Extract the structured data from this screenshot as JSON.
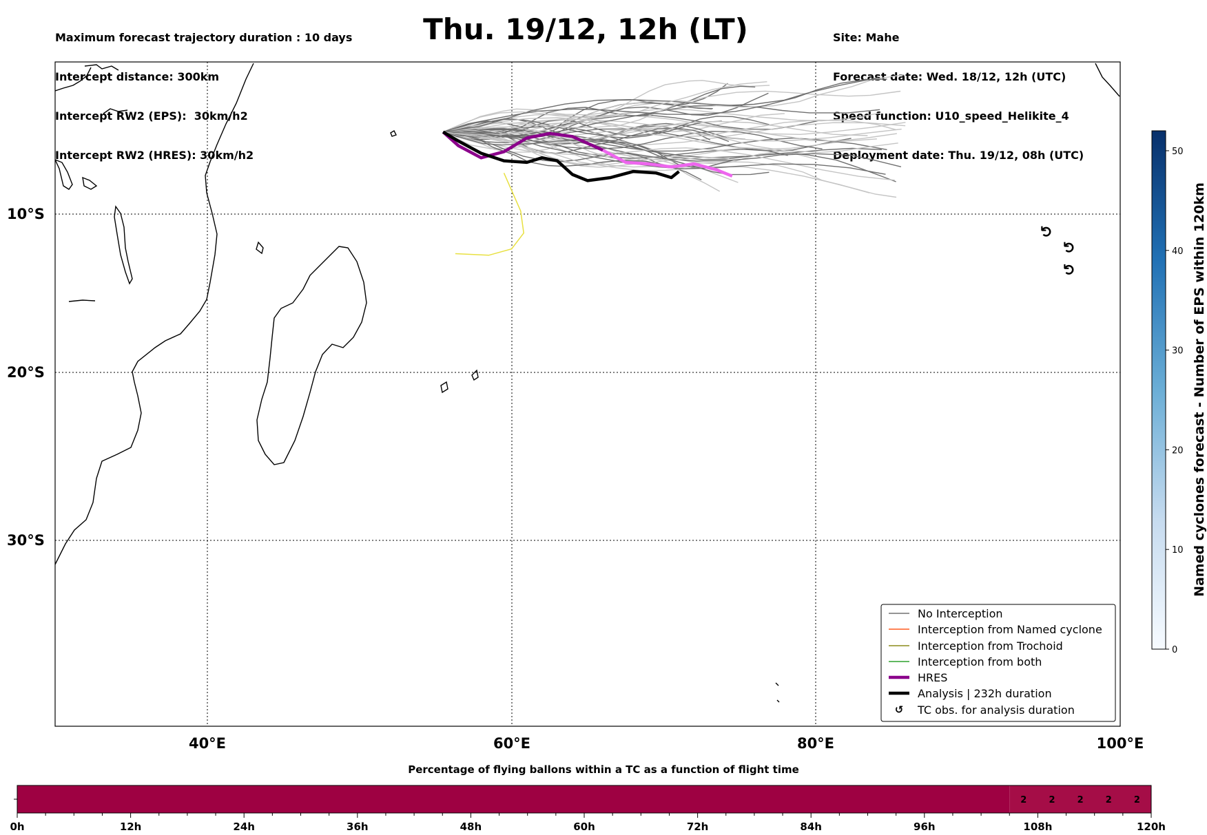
{
  "header": {
    "left": [
      "Maximum forecast trajectory duration : 10 days",
      "Intercept distance: 300km",
      "Intercept RW2 (EPS):  30km/h2",
      "Intercept RW2 (HRES): 30km/h2"
    ],
    "right": [
      "Site: Mahe",
      "Forecast date: Wed. 18/12, 12h (UTC)",
      "Speed function: U10_speed_Helikite_4",
      "Deployment date: Thu. 19/12, 08h (UTC)"
    ],
    "title": "Thu. 19/12, 12h (LT)"
  },
  "chart_data": [
    {
      "type": "line",
      "title": "Thu. 19/12, 12h (LT)",
      "x_ticks": [
        "40°E",
        "60°E",
        "80°E",
        "100°E"
      ],
      "y_ticks": [
        "10°S",
        "20°S",
        "30°S"
      ],
      "xlim": [
        30,
        100
      ],
      "ylim": [
        -33.5,
        0.5
      ],
      "grid": true,
      "legend_position": "lower-right",
      "legend": [
        {
          "label": "No Interception",
          "color": "#707070",
          "style": "line"
        },
        {
          "label": "Interception from Named cyclone",
          "color": "#ff5a1f",
          "style": "line"
        },
        {
          "label": "Interception from Trochoid",
          "color": "#8c8c1a",
          "style": "line"
        },
        {
          "label": "Interception from both",
          "color": "#2ca02c",
          "style": "line"
        },
        {
          "label": "HRES",
          "color": "#8b008b",
          "style": "thick"
        },
        {
          "label": "Analysis | 232h duration",
          "color": "#000000",
          "style": "thick"
        },
        {
          "label": "TC obs. for analysis duration",
          "color": "#000000",
          "style": "symbol"
        }
      ],
      "launch_site": {
        "lon": 55.5,
        "lat": -4.6
      },
      "hres_track": [
        [
          55.5,
          -4.6
        ],
        [
          56.5,
          -5.5
        ],
        [
          58,
          -6.3
        ],
        [
          59.5,
          -5.9
        ],
        [
          61,
          -5.0
        ],
        [
          62.5,
          -4.7
        ],
        [
          64,
          -4.9
        ],
        [
          66,
          -5.8
        ],
        [
          67.5,
          -6.6
        ],
        [
          69,
          -6.7
        ],
        [
          70.5,
          -6.9
        ],
        [
          72,
          -6.7
        ],
        [
          73.5,
          -7.1
        ],
        [
          74.5,
          -7.5
        ]
      ],
      "analysis_track": [
        [
          55.5,
          -4.6
        ],
        [
          56.5,
          -5.2
        ],
        [
          58,
          -6.0
        ],
        [
          59.5,
          -6.5
        ],
        [
          61,
          -6.6
        ],
        [
          62,
          -6.3
        ],
        [
          63,
          -6.5
        ],
        [
          64,
          -7.4
        ],
        [
          65,
          -7.8
        ],
        [
          66.5,
          -7.6
        ],
        [
          68,
          -7.2
        ],
        [
          69.5,
          -7.3
        ],
        [
          70.5,
          -7.6
        ],
        [
          71,
          -7.2
        ]
      ],
      "yellow_track": [
        [
          59.5,
          -7.3
        ],
        [
          60.6,
          -9.8
        ],
        [
          60.8,
          -11.2
        ],
        [
          60,
          -12.2
        ],
        [
          58.5,
          -12.6
        ],
        [
          56.3,
          -12.5
        ]
      ],
      "tc_observations": [
        [
          95.5,
          -11.1
        ],
        [
          97,
          -12.1
        ],
        [
          97,
          -13.5
        ]
      ],
      "colorbar": {
        "label": "Named cyclones forecast - Number of EPS within 120km",
        "ticks": [
          0,
          10,
          20,
          30,
          40,
          50
        ],
        "range": [
          0,
          52
        ],
        "colors": [
          "#f7fbff",
          "#08306b"
        ]
      }
    },
    {
      "type": "heatmap",
      "title": "Percentage of flying ballons within a TC as a function of flight time",
      "x_ticks": [
        "0h",
        "12h",
        "24h",
        "36h",
        "48h",
        "60h",
        "72h",
        "84h",
        "96h",
        "108h",
        "120h"
      ],
      "x_range_h": [
        0,
        120
      ],
      "segments": [
        {
          "from_h": 0,
          "to_h": 105,
          "value": "",
          "color": "#9e0142"
        },
        {
          "from_h": 105,
          "to_h": 120,
          "value": "",
          "color": "#a50d47"
        }
      ],
      "value_labels": [
        {
          "h": 106.5,
          "text": "2"
        },
        {
          "h": 109.5,
          "text": "2"
        },
        {
          "h": 112.5,
          "text": "2"
        },
        {
          "h": 115.5,
          "text": "2"
        },
        {
          "h": 118.5,
          "text": "2"
        }
      ]
    }
  ]
}
